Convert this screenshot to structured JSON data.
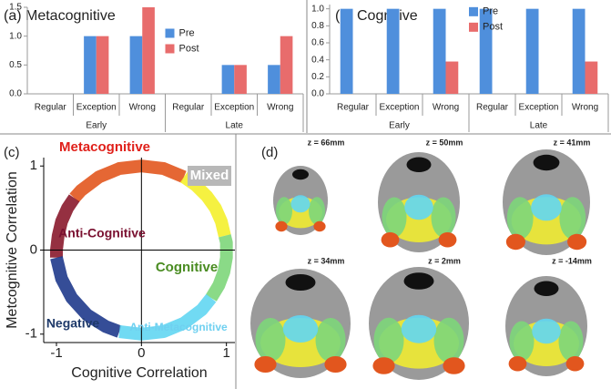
{
  "chart_data": [
    {
      "type": "bar",
      "title": "(a) Metacognitive",
      "categories": [
        "Regular",
        "Exception",
        "Wrong",
        "Regular",
        "Exception",
        "Wrong"
      ],
      "group_labels": [
        "Early",
        "Late"
      ],
      "series": [
        {
          "name": "Pre",
          "color": "#4f8fdc",
          "values": [
            0,
            1.0,
            1.0,
            0,
            0.5,
            0.5
          ]
        },
        {
          "name": "Post",
          "color": "#e86c6c",
          "values": [
            0,
            1.0,
            1.5,
            0,
            0.5,
            1.0
          ]
        }
      ],
      "ylim": [
        0,
        1.5
      ],
      "yticks": [
        {
          "value": 0,
          "label": "0.0"
        },
        {
          "value": 0.5,
          "label": "0.5"
        },
        {
          "value": 1.0,
          "label": "1.0"
        },
        {
          "value": 1.5,
          "label": "1.5"
        }
      ],
      "grid": false,
      "legend": "center"
    },
    {
      "type": "bar",
      "title": "(b) Cognitive",
      "categories": [
        "Regular",
        "Exception",
        "Wrong",
        "Regular",
        "Exception",
        "Wrong"
      ],
      "group_labels": [
        "Early",
        "Late"
      ],
      "series": [
        {
          "name": "Pre",
          "color": "#4f8fdc",
          "values": [
            1.0,
            1.0,
            1.0,
            1.0,
            1.0,
            1.0
          ]
        },
        {
          "name": "Post",
          "color": "#e86c6c",
          "values": [
            0,
            0,
            0.38,
            0,
            0,
            0.38
          ]
        }
      ],
      "ylim": [
        0,
        1.05
      ],
      "yticks": [
        {
          "value": 0,
          "label": "0.0"
        },
        {
          "value": 0.2,
          "label": "0.2"
        },
        {
          "value": 0.4,
          "label": "0.4"
        },
        {
          "value": 0.6,
          "label": "0.6"
        },
        {
          "value": 0.8,
          "label": "0.8"
        },
        {
          "value": 1.0,
          "label": "1.0"
        }
      ],
      "grid": false,
      "legend": "upper center"
    },
    {
      "type": "scatter",
      "title": "(c)",
      "x_label": "Cognitive Correlation",
      "y_label": "Metcognitive Correlation",
      "xlim": [
        -1.15,
        1.1
      ],
      "ylim": [
        -1.1,
        1.1
      ],
      "xticks": [
        -1,
        0,
        1
      ],
      "yticks": [
        -1,
        0,
        1
      ],
      "series": [
        {
          "name": "Metacognitive",
          "color": "#e2561e",
          "x": [
            0.5,
            0.26,
            0,
            -0.26,
            -0.5,
            -0.71,
            -0.79
          ],
          "y": [
            0.87,
            0.97,
            1,
            0.97,
            0.87,
            0.71,
            0.62
          ]
        },
        {
          "name": "Mixed",
          "color": "#f4f02c",
          "x": [
            0.98,
            0.94,
            0.87,
            0.77,
            0.64,
            0.5
          ],
          "y": [
            0.17,
            0.34,
            0.5,
            0.64,
            0.77,
            0.87
          ]
        },
        {
          "name": "Anti-Cognitive",
          "color": "#8a1a2c",
          "x": [
            -0.79,
            -0.87,
            -0.94,
            -0.98,
            -1,
            -1
          ],
          "y": [
            0.62,
            0.5,
            0.34,
            0.17,
            0,
            -0.09
          ]
        },
        {
          "name": "Cognitive",
          "color": "#7dd67a",
          "x": [
            0.82,
            0.91,
            0.97,
            1,
            1,
            0.98
          ],
          "y": [
            -0.57,
            -0.42,
            -0.26,
            -0.09,
            0.09,
            0.17
          ]
        },
        {
          "name": "Negative",
          "color": "#1f3a8c",
          "x": [
            -1,
            -0.94,
            -0.82,
            -0.64,
            -0.42,
            -0.26
          ],
          "y": [
            -0.09,
            -0.34,
            -0.57,
            -0.77,
            -0.91,
            -0.97
          ]
        },
        {
          "name": "Anti-Metacognitive",
          "color": "#62d6f2",
          "x": [
            -0.26,
            0,
            0.26,
            0.5,
            0.71,
            0.82
          ],
          "y": [
            -0.97,
            -1,
            -0.97,
            -0.87,
            -0.71,
            -0.57
          ]
        }
      ]
    }
  ],
  "brain_panel": {
    "label": "(d)",
    "slices": [
      "z = 66mm",
      "z = 50mm",
      "z = 41mm",
      "z = 34mm",
      "z = 2mm",
      "z = -14mm"
    ]
  }
}
